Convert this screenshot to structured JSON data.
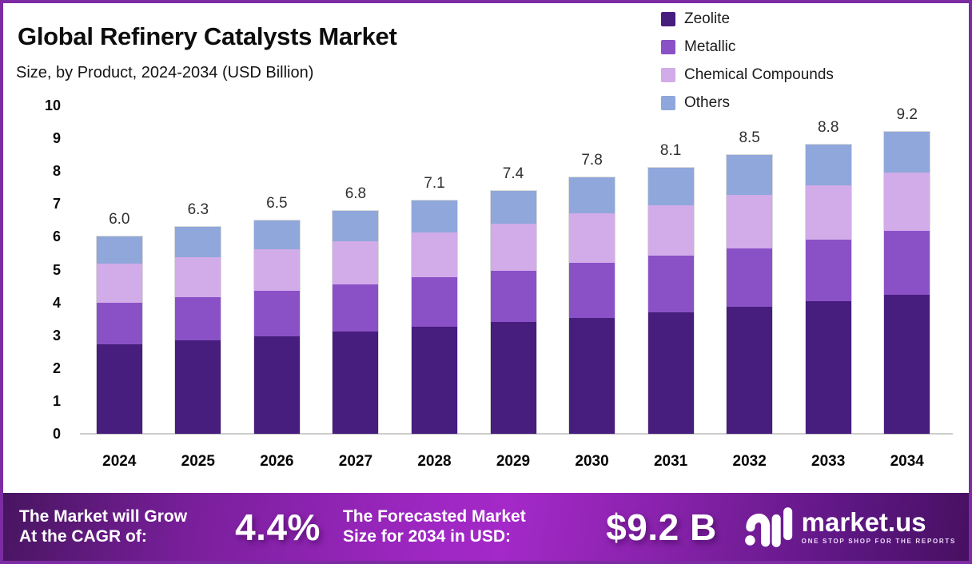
{
  "title": "Global Refinery Catalysts Market",
  "subtitle": "Size, by Product, 2024-2034 (USD Billion)",
  "chart_data": {
    "type": "bar",
    "stacked": true,
    "title": "Global Refinery Catalysts Market Size, by Product, 2024-2034 (USD Billion)",
    "xlabel": "",
    "ylabel": "USD Billion",
    "ylim": [
      0,
      10
    ],
    "y_ticks": [
      0,
      1,
      2,
      3,
      4,
      5,
      6,
      7,
      8,
      9,
      10
    ],
    "grid": false,
    "legend_position": "top-right",
    "categories": [
      "2024",
      "2025",
      "2026",
      "2027",
      "2028",
      "2029",
      "2030",
      "2031",
      "2032",
      "2033",
      "2034"
    ],
    "series": [
      {
        "name": "Zeolite",
        "color": "#471d7d",
        "values": [
          2.73,
          2.85,
          2.98,
          3.11,
          3.26,
          3.4,
          3.54,
          3.69,
          3.87,
          4.03,
          4.23
        ]
      },
      {
        "name": "Metallic",
        "color": "#8a51c7",
        "values": [
          1.27,
          1.3,
          1.37,
          1.45,
          1.52,
          1.56,
          1.66,
          1.74,
          1.78,
          1.88,
          1.95
        ]
      },
      {
        "name": "Chemical Compounds",
        "color": "#d2abe9",
        "values": [
          1.18,
          1.23,
          1.26,
          1.31,
          1.34,
          1.44,
          1.51,
          1.54,
          1.63,
          1.66,
          1.77
        ]
      },
      {
        "name": "Others",
        "color": "#8fa7da",
        "values": [
          0.82,
          0.92,
          0.89,
          0.93,
          0.98,
          1.0,
          1.09,
          1.13,
          1.22,
          1.23,
          1.25
        ]
      }
    ],
    "totals": [
      6.0,
      6.3,
      6.5,
      6.8,
      7.1,
      7.4,
      7.8,
      8.1,
      8.5,
      8.8,
      9.2
    ],
    "totals_labels": [
      "6.0",
      "6.3",
      "6.5",
      "6.8",
      "7.1",
      "7.4",
      "7.8",
      "8.1",
      "8.5",
      "8.8",
      "9.2"
    ]
  },
  "banner": {
    "cagr_label_line1": "The Market will Grow",
    "cagr_label_line2": "At the CAGR of:",
    "cagr_value": "4.4%",
    "forecast_label_line1": "The Forecasted Market",
    "forecast_label_line2": "Size for 2034 in USD:",
    "forecast_value": "$9.2 B",
    "logo_text": "market.us",
    "logo_tagline": "ONE STOP SHOP FOR THE REPORTS"
  },
  "colors": {
    "frame_border": "#7c2ba3",
    "axis_line": "#cdcdcd",
    "banner_center": "#a429c8",
    "banner_edge": "#471061",
    "text_dark": "#0d0d0d",
    "text_white": "#ffffff"
  }
}
